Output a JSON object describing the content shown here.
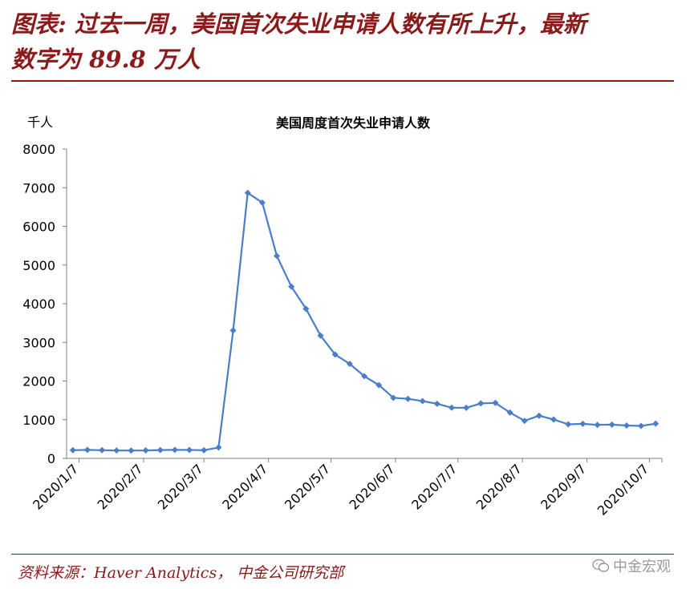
{
  "headline": {
    "line1": "图表: 过去一周，美国首次失业申请人数有所上升，最新",
    "line2": "数字为 89.8 万人"
  },
  "source": "资料来源：Haver Analytics， 中金公司研究部",
  "watermark": "中金宏观",
  "chart_data": {
    "type": "line",
    "title": "美国周度首次失业申请人数",
    "ylabel": "千人",
    "ylim": [
      0,
      8000
    ],
    "yticks": [
      "0",
      "1000",
      "2000",
      "3000",
      "4000",
      "5000",
      "6000",
      "7000",
      "8000"
    ],
    "xticks": [
      "2020/1/7",
      "2020/2/7",
      "2020/3/7",
      "2020/4/7",
      "2020/5/7",
      "2020/6/7",
      "2020/7/7",
      "2020/8/7",
      "2020/9/7",
      "2020/10/7"
    ],
    "grid": false,
    "line_color": "#4A7EC9",
    "series": [
      {
        "x": [
          "2020/1/4",
          "2020/1/11",
          "2020/1/18",
          "2020/1/25",
          "2020/2/1",
          "2020/2/8",
          "2020/2/15",
          "2020/2/22",
          "2020/2/29",
          "2020/3/7",
          "2020/3/14",
          "2020/3/21",
          "2020/3/28",
          "2020/4/4",
          "2020/4/11",
          "2020/4/18",
          "2020/4/25",
          "2020/5/2",
          "2020/5/9",
          "2020/5/16",
          "2020/5/23",
          "2020/5/30",
          "2020/6/6",
          "2020/6/13",
          "2020/6/20",
          "2020/6/27",
          "2020/7/4",
          "2020/7/11",
          "2020/7/18",
          "2020/7/25",
          "2020/8/1",
          "2020/8/8",
          "2020/8/15",
          "2020/8/22",
          "2020/8/29",
          "2020/9/5",
          "2020/9/12",
          "2020/9/19",
          "2020/9/26",
          "2020/10/3",
          "2020/10/10"
        ],
        "values": [
          212,
          220,
          212,
          205,
          203,
          206,
          215,
          219,
          217,
          211,
          282,
          3307,
          6867,
          6615,
          5237,
          4442,
          3867,
          3176,
          2687,
          2446,
          2126,
          1897,
          1566,
          1540,
          1482,
          1413,
          1310,
          1307,
          1422,
          1435,
          1186,
          971,
          1104,
          1006,
          881,
          893,
          866,
          873,
          849,
          840,
          898
        ]
      }
    ]
  }
}
